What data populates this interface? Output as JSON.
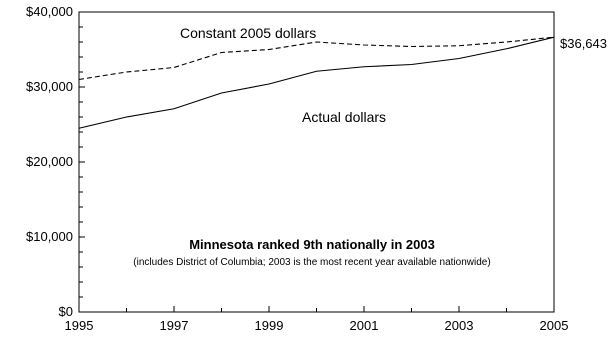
{
  "chart_data": {
    "type": "line",
    "x": [
      1995,
      1996,
      1997,
      1998,
      1999,
      2000,
      2001,
      2002,
      2003,
      2004,
      2005
    ],
    "series": [
      {
        "name": "Constant 2005 dollars",
        "values": [
          31000,
          32000,
          32600,
          34600,
          35000,
          36000,
          35600,
          35400,
          35500,
          36000,
          36643
        ],
        "line_style": "dashed",
        "color": "#000000"
      },
      {
        "name": "Actual dollars",
        "values": [
          24500,
          26000,
          27100,
          29200,
          30400,
          32100,
          32700,
          33000,
          33800,
          35100,
          36643
        ],
        "line_style": "solid",
        "color": "#000000"
      }
    ],
    "end_label": "$36,643",
    "xlim": [
      1995,
      2005
    ],
    "ylim": [
      0,
      40000
    ],
    "x_tick_values": [
      1995,
      1997,
      1999,
      2001,
      2003,
      2005
    ],
    "x_tick_labels": [
      "1995",
      "1997",
      "1999",
      "2001",
      "2003",
      "2005"
    ],
    "y_tick_values": [
      0,
      10000,
      20000,
      30000,
      40000
    ],
    "y_tick_labels": [
      "$0",
      "$10,000",
      "$20,000",
      "$30,000",
      "$40,000"
    ],
    "grid": false,
    "annotation": {
      "title": "Minnesota ranked 9th nationally in 2003",
      "note": "(includes District of Columbia; 2003 is the most recent year available nationwide)"
    }
  }
}
